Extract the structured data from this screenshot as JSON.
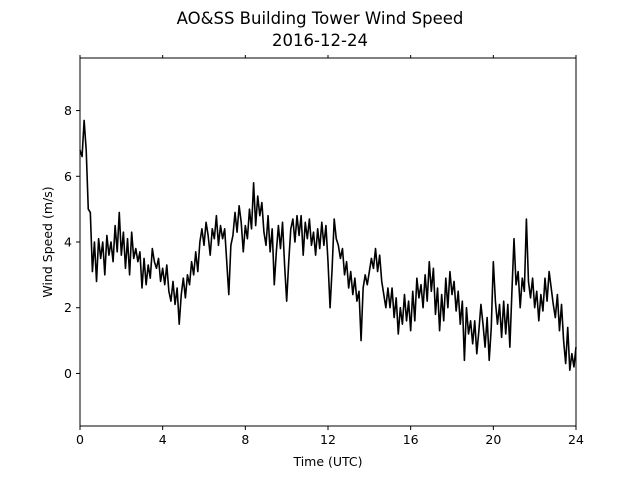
{
  "chart_data": {
    "type": "line",
    "title": "AO&SS Building Tower Wind Speed",
    "subtitle": "2016-12-24",
    "xlabel": "Time (UTC)",
    "ylabel": "Wind Speed (m/s)",
    "xlim": [
      0,
      24
    ],
    "ylim": [
      -1.6,
      9.6
    ],
    "xticks": [
      0,
      4,
      8,
      12,
      16,
      20,
      24
    ],
    "yticks": [
      0,
      2,
      4,
      6,
      8
    ],
    "grid": false,
    "line_color": "#000000",
    "series": [
      {
        "values": [
          [
            0.0,
            6.8
          ],
          [
            0.1,
            6.6
          ],
          [
            0.2,
            7.7
          ],
          [
            0.3,
            6.8
          ],
          [
            0.4,
            5.0
          ],
          [
            0.5,
            4.9
          ],
          [
            0.6,
            3.1
          ],
          [
            0.7,
            4.0
          ],
          [
            0.8,
            2.8
          ],
          [
            0.9,
            4.1
          ],
          [
            1.0,
            3.5
          ],
          [
            1.1,
            4.0
          ],
          [
            1.2,
            3.0
          ],
          [
            1.3,
            4.2
          ],
          [
            1.4,
            3.6
          ],
          [
            1.5,
            4.0
          ],
          [
            1.6,
            3.4
          ],
          [
            1.7,
            4.5
          ],
          [
            1.8,
            3.7
          ],
          [
            1.9,
            4.9
          ],
          [
            2.0,
            3.6
          ],
          [
            2.1,
            4.3
          ],
          [
            2.2,
            3.2
          ],
          [
            2.3,
            4.1
          ],
          [
            2.4,
            3.0
          ],
          [
            2.5,
            4.3
          ],
          [
            2.6,
            3.5
          ],
          [
            2.7,
            3.8
          ],
          [
            2.8,
            3.4
          ],
          [
            2.9,
            3.7
          ],
          [
            3.0,
            2.6
          ],
          [
            3.1,
            3.5
          ],
          [
            3.2,
            2.7
          ],
          [
            3.3,
            3.3
          ],
          [
            3.4,
            2.9
          ],
          [
            3.5,
            3.8
          ],
          [
            3.6,
            3.4
          ],
          [
            3.7,
            3.2
          ],
          [
            3.8,
            3.5
          ],
          [
            3.9,
            2.8
          ],
          [
            4.0,
            3.2
          ],
          [
            4.1,
            2.7
          ],
          [
            4.2,
            3.3
          ],
          [
            4.3,
            2.5
          ],
          [
            4.4,
            2.2
          ],
          [
            4.5,
            2.8
          ],
          [
            4.6,
            2.1
          ],
          [
            4.7,
            2.6
          ],
          [
            4.8,
            1.5
          ],
          [
            4.9,
            2.4
          ],
          [
            5.0,
            2.9
          ],
          [
            5.1,
            2.3
          ],
          [
            5.2,
            3.0
          ],
          [
            5.3,
            2.7
          ],
          [
            5.4,
            3.4
          ],
          [
            5.5,
            3.0
          ],
          [
            5.6,
            3.7
          ],
          [
            5.7,
            3.1
          ],
          [
            5.8,
            4.0
          ],
          [
            5.9,
            4.4
          ],
          [
            6.0,
            3.9
          ],
          [
            6.1,
            4.6
          ],
          [
            6.2,
            4.2
          ],
          [
            6.3,
            3.6
          ],
          [
            6.4,
            4.4
          ],
          [
            6.5,
            4.1
          ],
          [
            6.6,
            4.8
          ],
          [
            6.7,
            3.9
          ],
          [
            6.8,
            4.5
          ],
          [
            6.9,
            4.1
          ],
          [
            7.0,
            4.4
          ],
          [
            7.1,
            3.4
          ],
          [
            7.2,
            2.4
          ],
          [
            7.3,
            3.9
          ],
          [
            7.4,
            4.2
          ],
          [
            7.5,
            4.9
          ],
          [
            7.6,
            4.3
          ],
          [
            7.7,
            5.1
          ],
          [
            7.8,
            4.6
          ],
          [
            7.9,
            3.7
          ],
          [
            8.0,
            4.5
          ],
          [
            8.1,
            4.1
          ],
          [
            8.2,
            5.0
          ],
          [
            8.3,
            4.4
          ],
          [
            8.4,
            5.8
          ],
          [
            8.5,
            4.5
          ],
          [
            8.6,
            5.4
          ],
          [
            8.7,
            4.8
          ],
          [
            8.8,
            5.2
          ],
          [
            8.9,
            4.3
          ],
          [
            9.0,
            3.9
          ],
          [
            9.1,
            4.8
          ],
          [
            9.2,
            3.7
          ],
          [
            9.3,
            4.4
          ],
          [
            9.4,
            2.7
          ],
          [
            9.5,
            3.7
          ],
          [
            9.6,
            4.5
          ],
          [
            9.7,
            3.8
          ],
          [
            9.8,
            4.6
          ],
          [
            9.9,
            3.3
          ],
          [
            10.0,
            2.2
          ],
          [
            10.1,
            3.4
          ],
          [
            10.2,
            4.4
          ],
          [
            10.3,
            4.7
          ],
          [
            10.4,
            4.0
          ],
          [
            10.5,
            4.8
          ],
          [
            10.6,
            4.2
          ],
          [
            10.7,
            4.8
          ],
          [
            10.8,
            3.6
          ],
          [
            10.9,
            4.6
          ],
          [
            11.0,
            4.1
          ],
          [
            11.1,
            4.7
          ],
          [
            11.2,
            3.9
          ],
          [
            11.3,
            4.3
          ],
          [
            11.4,
            3.6
          ],
          [
            11.5,
            4.4
          ],
          [
            11.6,
            3.8
          ],
          [
            11.7,
            4.6
          ],
          [
            11.8,
            3.9
          ],
          [
            11.9,
            4.5
          ],
          [
            12.0,
            3.4
          ],
          [
            12.1,
            2.0
          ],
          [
            12.2,
            3.2
          ],
          [
            12.3,
            4.7
          ],
          [
            12.4,
            4.1
          ],
          [
            12.5,
            3.9
          ],
          [
            12.6,
            3.5
          ],
          [
            12.7,
            3.8
          ],
          [
            12.8,
            3.0
          ],
          [
            12.9,
            3.4
          ],
          [
            13.0,
            2.6
          ],
          [
            13.1,
            3.1
          ],
          [
            13.2,
            2.4
          ],
          [
            13.3,
            2.9
          ],
          [
            13.4,
            2.2
          ],
          [
            13.5,
            2.5
          ],
          [
            13.6,
            1.0
          ],
          [
            13.7,
            2.6
          ],
          [
            13.8,
            3.0
          ],
          [
            13.9,
            2.7
          ],
          [
            14.0,
            3.1
          ],
          [
            14.1,
            3.5
          ],
          [
            14.2,
            3.2
          ],
          [
            14.3,
            3.8
          ],
          [
            14.4,
            3.1
          ],
          [
            14.5,
            3.6
          ],
          [
            14.6,
            2.8
          ],
          [
            14.7,
            2.4
          ],
          [
            14.8,
            2.0
          ],
          [
            14.9,
            2.6
          ],
          [
            15.0,
            2.0
          ],
          [
            15.1,
            2.6
          ],
          [
            15.2,
            1.7
          ],
          [
            15.3,
            2.3
          ],
          [
            15.4,
            1.2
          ],
          [
            15.5,
            2.0
          ],
          [
            15.6,
            1.5
          ],
          [
            15.7,
            2.4
          ],
          [
            15.8,
            1.6
          ],
          [
            15.9,
            2.2
          ],
          [
            16.0,
            1.3
          ],
          [
            16.1,
            2.5
          ],
          [
            16.2,
            1.6
          ],
          [
            16.3,
            2.9
          ],
          [
            16.4,
            2.3
          ],
          [
            16.5,
            2.7
          ],
          [
            16.6,
            2.0
          ],
          [
            16.7,
            3.0
          ],
          [
            16.8,
            2.2
          ],
          [
            16.9,
            3.4
          ],
          [
            17.0,
            2.5
          ],
          [
            17.1,
            3.2
          ],
          [
            17.2,
            1.8
          ],
          [
            17.3,
            2.6
          ],
          [
            17.4,
            1.3
          ],
          [
            17.5,
            2.4
          ],
          [
            17.6,
            1.6
          ],
          [
            17.7,
            2.9
          ],
          [
            17.8,
            2.0
          ],
          [
            17.9,
            3.1
          ],
          [
            18.0,
            2.4
          ],
          [
            18.1,
            2.8
          ],
          [
            18.2,
            1.9
          ],
          [
            18.3,
            2.5
          ],
          [
            18.4,
            1.5
          ],
          [
            18.5,
            2.2
          ],
          [
            18.6,
            0.4
          ],
          [
            18.7,
            2.0
          ],
          [
            18.8,
            1.2
          ],
          [
            18.9,
            1.6
          ],
          [
            19.0,
            0.9
          ],
          [
            19.1,
            1.6
          ],
          [
            19.2,
            0.6
          ],
          [
            19.3,
            1.3
          ],
          [
            19.4,
            2.1
          ],
          [
            19.5,
            1.5
          ],
          [
            19.6,
            0.8
          ],
          [
            19.7,
            1.7
          ],
          [
            19.8,
            0.4
          ],
          [
            19.9,
            1.4
          ],
          [
            20.0,
            3.4
          ],
          [
            20.1,
            2.2
          ],
          [
            20.2,
            1.5
          ],
          [
            20.3,
            2.1
          ],
          [
            20.4,
            1.1
          ],
          [
            20.5,
            2.2
          ],
          [
            20.6,
            1.2
          ],
          [
            20.7,
            2.1
          ],
          [
            20.8,
            0.8
          ],
          [
            20.9,
            2.5
          ],
          [
            21.0,
            4.1
          ],
          [
            21.1,
            2.7
          ],
          [
            21.2,
            3.1
          ],
          [
            21.3,
            2.0
          ],
          [
            21.4,
            2.9
          ],
          [
            21.5,
            2.5
          ],
          [
            21.6,
            4.7
          ],
          [
            21.7,
            2.8
          ],
          [
            21.8,
            2.3
          ],
          [
            21.9,
            2.9
          ],
          [
            22.0,
            2.0
          ],
          [
            22.1,
            2.5
          ],
          [
            22.2,
            1.6
          ],
          [
            22.3,
            2.4
          ],
          [
            22.4,
            1.9
          ],
          [
            22.5,
            2.9
          ],
          [
            22.6,
            2.2
          ],
          [
            22.7,
            3.1
          ],
          [
            22.8,
            2.6
          ],
          [
            22.9,
            2.1
          ],
          [
            23.0,
            1.7
          ],
          [
            23.1,
            2.4
          ],
          [
            23.2,
            1.3
          ],
          [
            23.3,
            2.1
          ],
          [
            23.4,
            1.0
          ],
          [
            23.5,
            0.3
          ],
          [
            23.6,
            1.4
          ],
          [
            23.7,
            0.1
          ],
          [
            23.8,
            0.6
          ],
          [
            23.9,
            0.2
          ],
          [
            24.0,
            0.8
          ]
        ]
      }
    ]
  }
}
